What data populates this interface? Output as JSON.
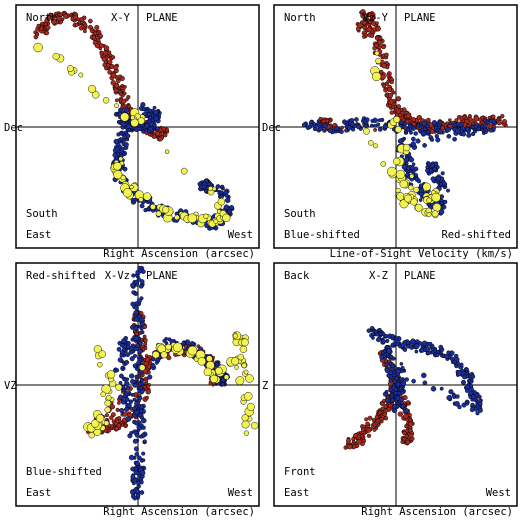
{
  "colors": {
    "red": "#a52a20",
    "blue": "#1a2f9a",
    "yellow": "#f2f250",
    "outline": "#000000"
  },
  "panels": [
    {
      "key": "xy",
      "title": "X-Y",
      "plane": "PLANE",
      "top_left": "North",
      "left_axis": "Dec",
      "bottom_left_1": "South",
      "bottom_left_2": "East",
      "bottom_right": "West",
      "xlabel": "Right Ascension (arcsec)"
    },
    {
      "key": "vzy",
      "title": "Vz-Y",
      "plane": "PLANE",
      "top_left": "North",
      "left_axis": "Dec",
      "bottom_left_1": "South",
      "bottom_left_2": "Blue-shifted",
      "bottom_right": "Red-shifted",
      "xlabel": "Line-of-Sight Velocity (km/s)"
    },
    {
      "key": "xvz",
      "title": "X-Vz",
      "plane": "PLANE",
      "top_left": "Red-shifted",
      "left_axis": "VZ",
      "bottom_left_1": "Blue-shifted",
      "bottom_left_2": "East",
      "bottom_right": "West",
      "xlabel": "Right Ascension (arcsec)"
    },
    {
      "key": "xz",
      "title": "X-Z",
      "plane": "PLANE",
      "top_left": "Back",
      "left_axis": "Z",
      "bottom_left_1": "Front",
      "bottom_left_2": "East",
      "bottom_right": "West",
      "xlabel": "Right Ascension (arcsec)"
    }
  ],
  "chart_data": [
    {
      "type": "scatter",
      "panel": "xy",
      "axes": "crosshair at origin",
      "series": [
        {
          "color": "red",
          "points": [
            [
              -0.85,
              0.75
            ],
            [
              -0.75,
              0.9
            ],
            [
              -0.6,
              0.95
            ],
            [
              -0.45,
              0.88
            ],
            [
              -0.35,
              0.78
            ],
            [
              -0.25,
              0.6
            ],
            [
              -0.2,
              0.45
            ],
            [
              -0.15,
              0.3
            ],
            [
              -0.1,
              0.15
            ],
            [
              -0.05,
              0.08
            ],
            [
              0.0,
              0.02
            ],
            [
              0.1,
              -0.02
            ],
            [
              0.2,
              -0.06
            ]
          ]
        },
        {
          "color": "blue",
          "points": [
            [
              -0.15,
              0.12
            ],
            [
              -0.1,
              0.05
            ],
            [
              0.0,
              0.0
            ],
            [
              0.12,
              -0.02
            ],
            [
              0.15,
              0.1
            ],
            [
              0.05,
              0.15
            ],
            [
              -0.12,
              -0.05
            ],
            [
              -0.15,
              -0.2
            ],
            [
              -0.18,
              -0.32
            ],
            [
              -0.12,
              -0.48
            ],
            [
              0.0,
              -0.6
            ],
            [
              0.2,
              -0.72
            ],
            [
              0.45,
              -0.78
            ],
            [
              0.65,
              -0.82
            ],
            [
              0.75,
              -0.72
            ],
            [
              0.7,
              -0.55
            ],
            [
              0.55,
              -0.5
            ]
          ]
        },
        {
          "color": "yellow",
          "points": [
            [
              -0.2,
              -0.25
            ],
            [
              -0.15,
              -0.38
            ],
            [
              -0.05,
              -0.55
            ],
            [
              0.15,
              -0.7
            ],
            [
              0.4,
              -0.78
            ],
            [
              0.6,
              -0.8
            ],
            [
              0.72,
              -0.75
            ],
            [
              0.65,
              -0.55
            ],
            [
              -0.85,
              0.7
            ],
            [
              0.0,
              0.05
            ]
          ]
        }
      ]
    },
    {
      "type": "scatter",
      "panel": "vzy",
      "axes": "crosshair at origin",
      "series": [
        {
          "color": "red",
          "points": [
            [
              -0.3,
              0.8
            ],
            [
              -0.25,
              0.95
            ],
            [
              -0.2,
              0.88
            ],
            [
              -0.15,
              0.7
            ],
            [
              -0.1,
              0.5
            ],
            [
              -0.05,
              0.3
            ],
            [
              0.0,
              0.12
            ],
            [
              0.1,
              0.08
            ],
            [
              0.2,
              0.02
            ],
            [
              0.3,
              0.0
            ],
            [
              0.45,
              0.02
            ],
            [
              0.6,
              0.05
            ],
            [
              0.75,
              0.03
            ],
            [
              0.9,
              0.06
            ],
            [
              -0.4,
              0.0
            ],
            [
              -0.6,
              0.03
            ]
          ]
        },
        {
          "color": "blue",
          "points": [
            [
              -0.75,
              0.02
            ],
            [
              -0.5,
              0.0
            ],
            [
              -0.25,
              0.03
            ],
            [
              0.0,
              0.0
            ],
            [
              0.2,
              -0.02
            ],
            [
              0.4,
              0.0
            ],
            [
              0.6,
              -0.03
            ],
            [
              0.8,
              0.02
            ],
            [
              0.05,
              -0.15
            ],
            [
              0.1,
              -0.3
            ],
            [
              0.15,
              -0.45
            ],
            [
              0.25,
              -0.6
            ],
            [
              0.35,
              -0.7
            ],
            [
              0.4,
              -0.5
            ],
            [
              0.3,
              -0.35
            ]
          ]
        },
        {
          "color": "yellow",
          "points": [
            [
              -0.25,
              0.72
            ],
            [
              0.05,
              -0.1
            ],
            [
              0.05,
              -0.5
            ],
            [
              0.1,
              -0.62
            ],
            [
              0.2,
              -0.7
            ],
            [
              0.3,
              -0.72
            ],
            [
              -0.3,
              -0.05
            ],
            [
              0.3,
              -0.58
            ]
          ]
        }
      ]
    },
    {
      "type": "scatter",
      "panel": "xvz",
      "axes": "crosshair at origin",
      "series": [
        {
          "color": "red",
          "points": [
            [
              0.0,
              0.6
            ],
            [
              0.02,
              0.4
            ],
            [
              0.05,
              0.2
            ],
            [
              0.05,
              0.0
            ],
            [
              0.0,
              -0.2
            ],
            [
              -0.1,
              -0.3
            ],
            [
              -0.25,
              -0.35
            ],
            [
              -0.4,
              -0.4
            ],
            [
              -0.2,
              -0.2
            ],
            [
              0.15,
              0.25
            ],
            [
              0.3,
              0.3
            ],
            [
              0.45,
              0.3
            ],
            [
              0.6,
              0.2
            ],
            [
              0.65,
              0.05
            ]
          ]
        },
        {
          "color": "blue",
          "points": [
            [
              0.0,
              1.0
            ],
            [
              0.0,
              0.75
            ],
            [
              0.0,
              0.5
            ],
            [
              -0.02,
              0.25
            ],
            [
              0.0,
              0.0
            ],
            [
              0.0,
              -0.25
            ],
            [
              0.02,
              -0.5
            ],
            [
              0.0,
              -0.75
            ],
            [
              0.0,
              -0.95
            ],
            [
              -0.1,
              0.4
            ],
            [
              -0.15,
              0.15
            ],
            [
              -0.1,
              -0.2
            ],
            [
              0.2,
              0.35
            ],
            [
              0.4,
              0.32
            ],
            [
              0.6,
              0.22
            ],
            [
              0.7,
              0.05
            ]
          ]
        },
        {
          "color": "yellow",
          "points": [
            [
              -0.3,
              0.3
            ],
            [
              -0.25,
              0.0
            ],
            [
              -0.3,
              -0.35
            ],
            [
              -0.4,
              -0.4
            ],
            [
              0.1,
              0.3
            ],
            [
              0.35,
              0.3
            ],
            [
              0.55,
              0.22
            ],
            [
              0.65,
              0.05
            ],
            [
              0.85,
              0.25
            ],
            [
              0.85,
              0.1
            ],
            [
              0.95,
              -0.4
            ],
            [
              0.85,
              0.4
            ]
          ]
        }
      ]
    },
    {
      "type": "scatter",
      "panel": "xz",
      "axes": "crosshair at origin",
      "series": [
        {
          "color": "red",
          "points": [
            [
              -0.1,
              0.25
            ],
            [
              -0.05,
              0.15
            ],
            [
              0.0,
              0.05
            ],
            [
              0.0,
              -0.05
            ],
            [
              -0.05,
              -0.15
            ],
            [
              -0.12,
              -0.25
            ],
            [
              -0.2,
              -0.35
            ],
            [
              -0.3,
              -0.45
            ],
            [
              -0.4,
              -0.5
            ],
            [
              0.05,
              -0.1
            ],
            [
              0.1,
              -0.3
            ],
            [
              0.1,
              -0.45
            ]
          ]
        },
        {
          "color": "blue",
          "points": [
            [
              -0.2,
              0.45
            ],
            [
              -0.1,
              0.4
            ],
            [
              0.05,
              0.35
            ],
            [
              0.2,
              0.32
            ],
            [
              0.35,
              0.28
            ],
            [
              0.5,
              0.2
            ],
            [
              0.6,
              0.05
            ],
            [
              0.65,
              -0.1
            ],
            [
              0.68,
              -0.22
            ],
            [
              0.0,
              0.15
            ],
            [
              0.05,
              0.0
            ],
            [
              -0.05,
              -0.1
            ],
            [
              0.05,
              -0.2
            ],
            [
              -0.08,
              0.28
            ]
          ]
        }
      ]
    }
  ]
}
